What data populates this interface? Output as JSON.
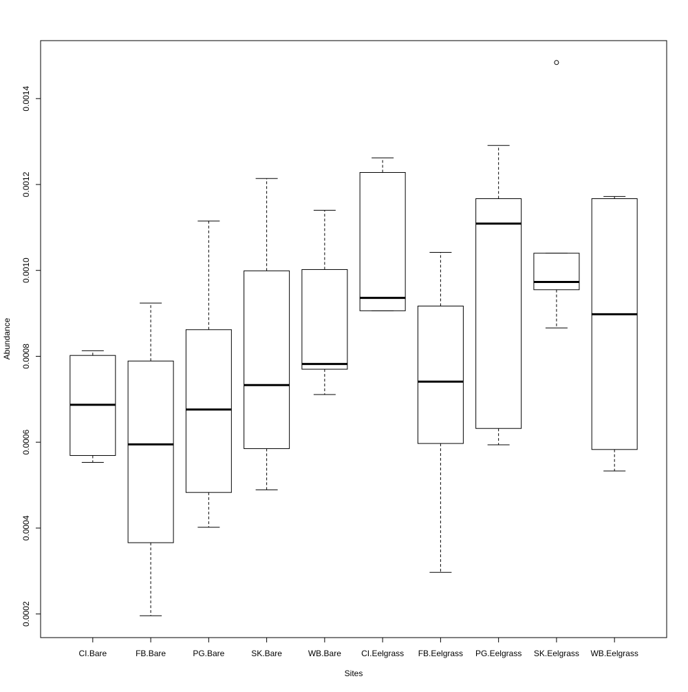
{
  "chart_data": {
    "type": "boxplot",
    "title": "",
    "xlabel": "Sites",
    "ylabel": "Abundance",
    "ylim": [
      0.000145,
      0.001535
    ],
    "yticks": [
      0.0002,
      0.0004,
      0.0006,
      0.0008,
      0.001,
      0.0012,
      0.0014
    ],
    "ytick_labels": [
      "0.0002",
      "0.0004",
      "0.0006",
      "0.0008",
      "0.0010",
      "0.0012",
      "0.0014"
    ],
    "categories": [
      "CI.Bare",
      "FB.Bare",
      "PG.Bare",
      "SK.Bare",
      "WB.Bare",
      "CI.Eelgrass",
      "FB.Eelgrass",
      "PG.Eelgrass",
      "SK.Eelgrass",
      "WB.Eelgrass"
    ],
    "boxes": [
      {
        "whisker_low": 0.000553,
        "q1": 0.000569,
        "median": 0.000687,
        "q3": 0.000802,
        "whisker_high": 0.000813,
        "outliers": []
      },
      {
        "whisker_low": 0.000196,
        "q1": 0.000366,
        "median": 0.000595,
        "q3": 0.000789,
        "whisker_high": 0.000924,
        "outliers": []
      },
      {
        "whisker_low": 0.000402,
        "q1": 0.000483,
        "median": 0.000676,
        "q3": 0.000862,
        "whisker_high": 0.001115,
        "outliers": []
      },
      {
        "whisker_low": 0.000489,
        "q1": 0.000585,
        "median": 0.000733,
        "q3": 0.000999,
        "whisker_high": 0.001214,
        "outliers": []
      },
      {
        "whisker_low": 0.000711,
        "q1": 0.00077,
        "median": 0.000782,
        "q3": 0.001002,
        "whisker_high": 0.00114,
        "outliers": []
      },
      {
        "whisker_low": 0.000906,
        "q1": 0.000906,
        "median": 0.000936,
        "q3": 0.001228,
        "whisker_high": 0.001262,
        "outliers": []
      },
      {
        "whisker_low": 0.000297,
        "q1": 0.000597,
        "median": 0.000741,
        "q3": 0.000917,
        "whisker_high": 0.001042,
        "outliers": []
      },
      {
        "whisker_low": 0.000594,
        "q1": 0.000632,
        "median": 0.001109,
        "q3": 0.001167,
        "whisker_high": 0.001291,
        "outliers": []
      },
      {
        "whisker_low": 0.000866,
        "q1": 0.000955,
        "median": 0.000973,
        "q3": 0.00104,
        "whisker_high": 0.00104,
        "outliers": [
          0.001484
        ]
      },
      {
        "whisker_low": 0.000533,
        "q1": 0.000583,
        "median": 0.000898,
        "q3": 0.001167,
        "whisker_high": 0.001172,
        "outliers": []
      }
    ],
    "grid": false,
    "legend": "none"
  }
}
